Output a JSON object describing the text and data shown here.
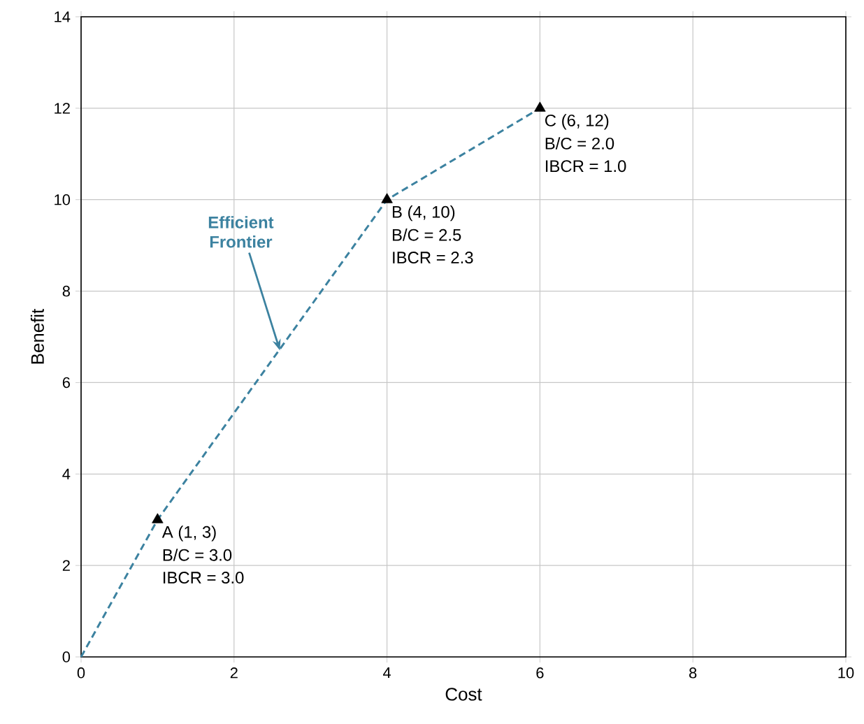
{
  "chart_data": {
    "type": "line",
    "xlabel": "Cost",
    "ylabel": "Benefit",
    "xlim": [
      0,
      10
    ],
    "ylim": [
      0,
      14
    ],
    "xticks": [
      0,
      2,
      4,
      6,
      8,
      10
    ],
    "yticks": [
      0,
      2,
      4,
      6,
      8,
      10,
      12,
      14
    ],
    "grid": true,
    "series": [
      {
        "x": [
          0,
          1,
          4,
          6
        ],
        "values": [
          0,
          3,
          10,
          12
        ],
        "color": "#3c82a0",
        "line_style": "dashed",
        "marker": "none"
      },
      {
        "type": "scatter",
        "x": [
          1,
          4,
          6
        ],
        "values": [
          3,
          10,
          12
        ],
        "color": "#000000",
        "marker": "triangle"
      }
    ],
    "annotations": [
      {
        "text": "A (1, 3)",
        "x": 1,
        "y": 3
      },
      "B/C = 3.0",
      "IBCR = 3.0",
      {
        "text": "B (4, 10)",
        "x": 4,
        "y": 10
      },
      "B/C = 2.5",
      "IBCR = 2.3",
      {
        "text": "C (6, 12)",
        "x": 6,
        "y": 12
      },
      "B/C = 2.0",
      "IBCR = 1.0",
      {
        "text": "Efficient Frontier",
        "x": 2.6,
        "y": 6.7
      }
    ]
  }
}
